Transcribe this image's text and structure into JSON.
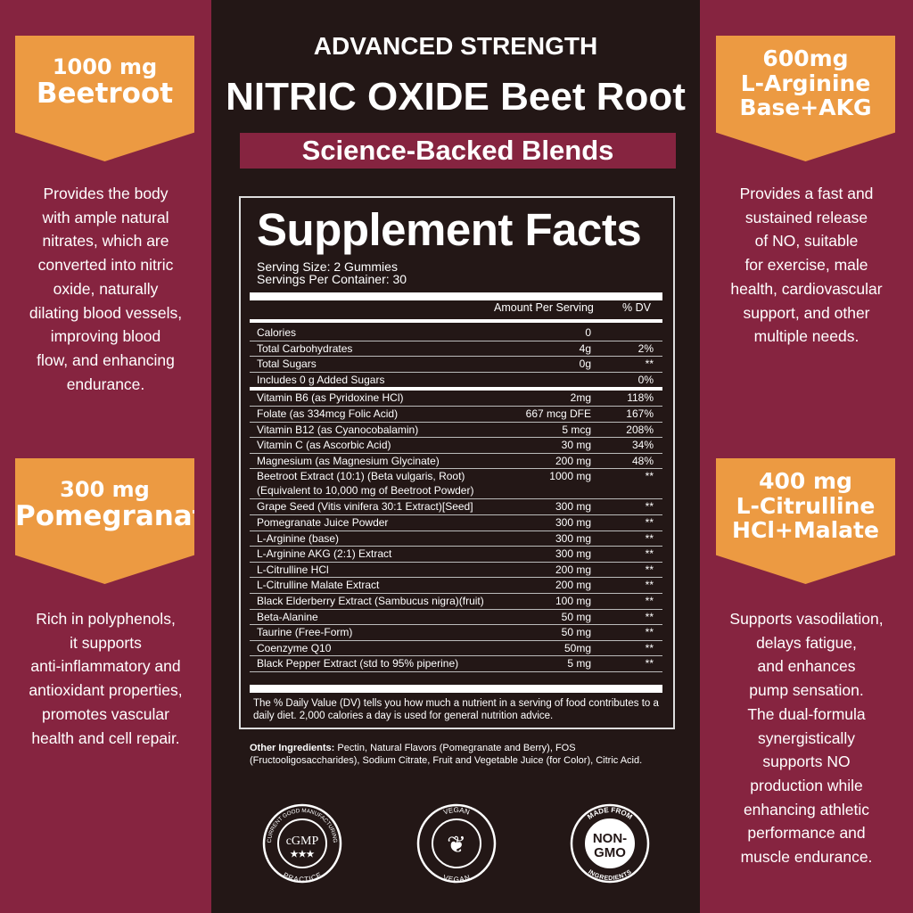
{
  "colors": {
    "side": "#862440",
    "accent": "#ec9a42",
    "panel": "#231716"
  },
  "left": [
    {
      "badge": [
        "1000 mg",
        "Beetroot"
      ],
      "desc": [
        "Provides the body",
        "with ample natural",
        "nitrates, which are",
        "converted into nitric",
        "oxide, naturally",
        "dilating blood vessels,",
        "improving blood",
        "flow, and enhancing",
        "endurance."
      ]
    },
    {
      "badge": [
        "300 mg",
        "Pomegranate"
      ],
      "desc": [
        "Rich in polyphenols,",
        "it supports",
        "anti-inflammatory and",
        "antioxidant properties,",
        "promotes vascular",
        "health and cell repair."
      ]
    }
  ],
  "right": [
    {
      "badge": [
        "600mg",
        "L-Arginine",
        "Base+AKG"
      ],
      "desc": [
        "Provides a fast and",
        "sustained release",
        "of NO, suitable",
        "for exercise, male",
        "health, cardiovascular",
        "support, and other",
        "multiple needs."
      ]
    },
    {
      "badge": [
        "400 mg",
        "L-Citrulline",
        "HCl+Malate"
      ],
      "desc": [
        "Supports vasodilation,",
        "delays fatigue,",
        "and enhances",
        "pump sensation.",
        "The dual-formula",
        "synergistically",
        "supports NO",
        "production while",
        "enhancing athletic",
        "performance and",
        "muscle endurance."
      ]
    }
  ],
  "header": {
    "line1": "ADVANCED STRENGTH",
    "line2": "NITRIC OXIDE Beet Root",
    "banner": "Science-Backed Blends"
  },
  "facts": {
    "title": "Supplement Facts",
    "serving_size": "Serving Size: 2 Gummies",
    "servings": "Servings Per Container: 30",
    "col_amount": "Amount Per Serving",
    "col_dv": "% DV",
    "rows": [
      [
        "Calories",
        "0",
        ""
      ],
      [
        "Total Carbohydrates",
        "4g",
        "2%"
      ],
      [
        "Total Sugars",
        "0g",
        "**"
      ],
      [
        "Includes 0 g Added Sugars",
        "",
        "0%"
      ],
      [
        "Vitamin B6 (as Pyridoxine HCl)",
        "2mg",
        "118%"
      ],
      [
        "Folate (as 334mcg Folic Acid)",
        "667 mcg DFE",
        "167%"
      ],
      [
        "Vitamin B12 (as Cyanocobalamin)",
        "5 mcg",
        "208%"
      ],
      [
        "Vitamin C (as Ascorbic Acid)",
        "30 mg",
        "34%"
      ],
      [
        "Magnesium (as Magnesium Glycinate)",
        "200 mg",
        "48%"
      ],
      [
        "Beetroot Extract (10:1) (Beta vulgaris, Root)\n(Equivalent to 10,000 mg of Beetroot Powder)",
        "1000 mg",
        "**"
      ],
      [
        "Grape Seed (Vitis vinifera 30:1 Extract)[Seed]",
        "300 mg",
        "**"
      ],
      [
        "Pomegranate Juice Powder",
        "300 mg",
        "**"
      ],
      [
        "L-Arginine (base)",
        "300 mg",
        "**"
      ],
      [
        "L-Arginine AKG (2:1) Extract",
        "300 mg",
        "**"
      ],
      [
        "L-Citrulline HCl",
        "200 mg",
        "**"
      ],
      [
        "L-Citrulline Malate Extract",
        "200 mg",
        "**"
      ],
      [
        "Black Elderberry Extract (Sambucus nigra)(fruit)",
        "100 mg",
        "**"
      ],
      [
        "Beta-Alanine",
        "50 mg",
        "**"
      ],
      [
        "Taurine (Free-Form)",
        "50 mg",
        "**"
      ],
      [
        "Coenzyme Q10",
        "50mg",
        "**"
      ],
      [
        "Black Pepper Extract (std to 95% piperine)",
        "5 mg",
        "**"
      ]
    ],
    "footnote": "The % Daily Value (DV) tells you how much a nutrient in a serving of food contributes to a daily diet. 2,000 calories a day is used for general nutrition advice."
  },
  "other": {
    "label": "Other Ingredients:",
    "text": " Pectin, Natural Flavors (Pomegranate and Berry), FOS (Fructooligosaccharides), Sodium Citrate, Fruit and Vegetable Juice (for Color), Citric Acid."
  },
  "seals": [
    {
      "top": "CURRENT GOOD MANUFACTURING",
      "center": "cGMP",
      "sub": "★★★",
      "bottom": "PRACTICE",
      "icon": "cgmp-seal-icon"
    },
    {
      "top": "VEGAN",
      "center": "❦",
      "sub": "",
      "bottom": "VEGAN",
      "icon": "vegan-seal-icon"
    },
    {
      "top": "MADE FROM",
      "center": "NON-",
      "sub": "GMO",
      "bottom": "INGREDIENTS",
      "icon": "non-gmo-seal-icon"
    }
  ]
}
